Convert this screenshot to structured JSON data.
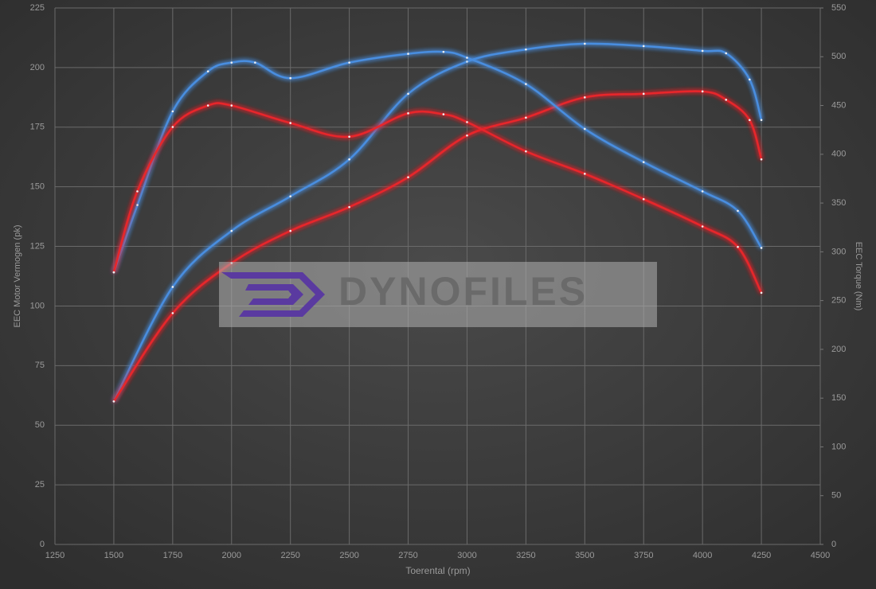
{
  "chart_data": {
    "type": "line",
    "xlabel": "Toerental (rpm)",
    "ylabel": "EEC Motor Vermogen (pk)",
    "y2label": "EEC Torque (Nm)",
    "watermark": "DYNOFILES",
    "xlim": [
      1250,
      4500
    ],
    "xticks": [
      1250,
      1500,
      1750,
      2000,
      2250,
      2500,
      2750,
      3000,
      3250,
      3500,
      3750,
      4000,
      4250,
      4500
    ],
    "ylim": [
      0,
      225
    ],
    "yticks": [
      0,
      25,
      50,
      75,
      100,
      125,
      150,
      175,
      200,
      225
    ],
    "y2lim": [
      0,
      550
    ],
    "y2ticks": [
      0,
      50,
      100,
      150,
      200,
      250,
      300,
      350,
      400,
      450,
      500,
      550
    ],
    "grid": true,
    "series": [
      {
        "color": "#4a8ee0",
        "axis": "y",
        "x": [
          1500,
          1750,
          2000,
          2250,
          2500,
          2750,
          3000,
          3250,
          3500,
          3750,
          4000,
          4100,
          4200,
          4250
        ],
        "values": [
          60,
          108,
          131.5,
          146,
          161.5,
          189,
          202.5,
          207.6,
          210,
          209,
          207,
          206,
          195,
          178
        ]
      },
      {
        "color": "#e8262c",
        "axis": "y",
        "x": [
          1500,
          1750,
          2000,
          2250,
          2500,
          2750,
          3000,
          3250,
          3500,
          3750,
          4000,
          4100,
          4200,
          4250
        ],
        "values": [
          60,
          97,
          118,
          131.5,
          141.5,
          154,
          171.5,
          179,
          187.5,
          189,
          190,
          186.5,
          178,
          161.5
        ]
      },
      {
        "color": "#4a8ee0",
        "axis": "y2",
        "x": [
          1500,
          1600,
          1750,
          1900,
          2000,
          2100,
          2250,
          2500,
          2750,
          2900,
          3000,
          3250,
          3500,
          3750,
          4000,
          4150,
          4250
        ],
        "values": [
          279,
          348,
          444,
          485,
          494,
          494,
          478,
          494,
          503,
          505,
          499,
          472,
          426,
          392,
          362,
          342,
          304
        ]
      },
      {
        "color": "#e8262c",
        "axis": "y2",
        "x": [
          1500,
          1600,
          1750,
          1900,
          2000,
          2250,
          2500,
          2750,
          2900,
          3000,
          3250,
          3500,
          3750,
          4000,
          4150,
          4250
        ],
        "values": [
          279,
          362,
          428,
          450,
          450,
          432,
          418,
          442,
          441,
          433,
          403,
          380,
          354,
          326,
          305,
          258
        ]
      }
    ]
  }
}
